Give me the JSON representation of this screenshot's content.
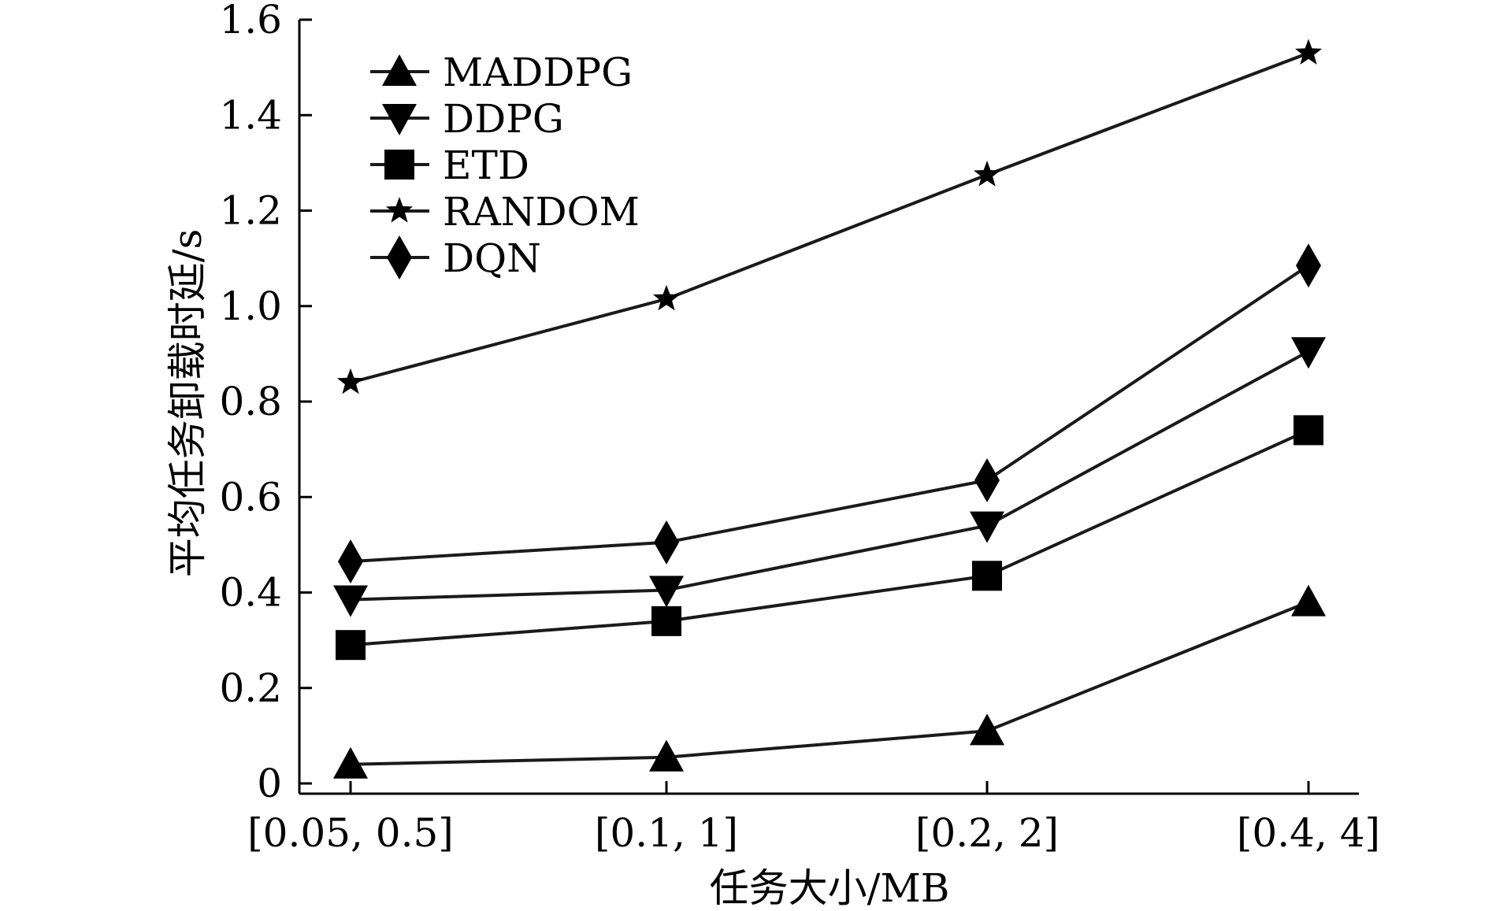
{
  "chart_data": {
    "type": "line",
    "xlabel": "任务大小/MB",
    "ylabel": "平均任务卸载时延/s",
    "categories": [
      "[0.05, 0.5]",
      "[0.1, 1]",
      "[0.2, 2]",
      "[0.4, 4]"
    ],
    "ylim": [
      0,
      1.6
    ],
    "yticks": [
      "0",
      "0.2",
      "0.4",
      "0.6",
      "0.8",
      "1.0",
      "1.2",
      "1.4",
      "1.6"
    ],
    "grid": false,
    "legend_position": "top-left",
    "series": [
      {
        "name": "MADDPG",
        "marker": "triangle-up",
        "values": [
          0.04,
          0.055,
          0.11,
          0.38
        ]
      },
      {
        "name": "DDPG",
        "marker": "triangle-down",
        "values": [
          0.385,
          0.405,
          0.54,
          0.905
        ]
      },
      {
        "name": "ETD",
        "marker": "square",
        "values": [
          0.29,
          0.34,
          0.435,
          0.74
        ]
      },
      {
        "name": "RANDOM",
        "marker": "star",
        "values": [
          0.84,
          1.015,
          1.275,
          1.53
        ]
      },
      {
        "name": "DQN",
        "marker": "diamond",
        "values": [
          0.465,
          0.505,
          0.635,
          1.085
        ]
      }
    ],
    "colors": {
      "line": "#1a1a1a",
      "marker": "#000000"
    }
  }
}
